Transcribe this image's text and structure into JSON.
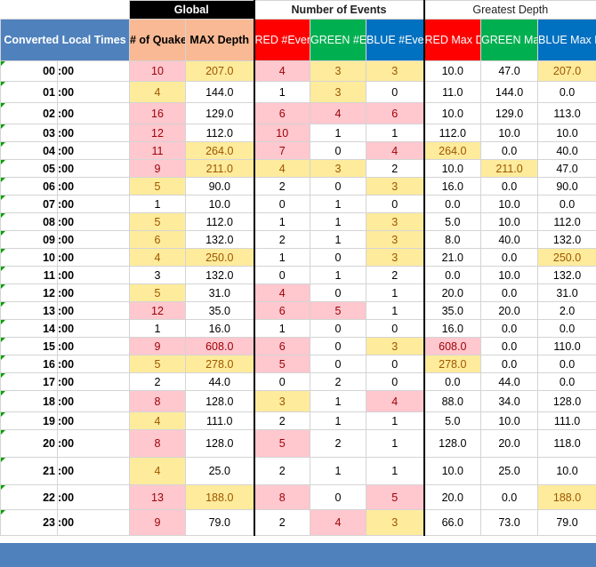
{
  "group_headers": {
    "global": "Global",
    "events": "Number of Events",
    "depth": "Greatest Depth"
  },
  "column_headers": {
    "converted": "Converted Local Times",
    "quakes": "# of Quakes",
    "max_depth": "MAX Depth",
    "red_events": "RED #Events",
    "green_events": "GREEN #Events",
    "blue_events": "BLUE #Events",
    "red_max": "RED Max Depth",
    "green_max": "GREEN Max Depth",
    "blue_max": "BLUE Max Depth"
  },
  "colors": {
    "header_blue": "#4f81bd",
    "header_orange": "#f8b994",
    "red": "#ff0000",
    "green": "#00b050",
    "blue": "#0070c0",
    "highlight_pink": "#ffc7ce",
    "highlight_yellow": "#ffeb9c"
  },
  "rows": [
    {
      "hour": "00",
      "min": ":00",
      "q": "10",
      "md": "207.0",
      "re": "4",
      "ge": "3",
      "be": "3",
      "rd": "10.0",
      "gd": "47.0",
      "bd": "207.0",
      "hl": {
        "q": "pink",
        "md": "yel",
        "re": "pink",
        "ge": "yel",
        "be": "yel",
        "bd": "yel"
      }
    },
    {
      "hour": "01",
      "min": ":00",
      "q": "4",
      "md": "144.0",
      "re": "1",
      "ge": "3",
      "be": "0",
      "rd": "11.0",
      "gd": "144.0",
      "bd": "0.0",
      "hl": {
        "q": "yel",
        "ge": "yel"
      }
    },
    {
      "hour": "02",
      "min": ":00",
      "q": "16",
      "md": "129.0",
      "re": "6",
      "ge": "4",
      "be": "6",
      "rd": "10.0",
      "gd": "129.0",
      "bd": "113.0",
      "hl": {
        "q": "pink",
        "re": "pink",
        "ge": "pink",
        "be": "pink"
      }
    },
    {
      "hour": "03",
      "min": ":00",
      "q": "12",
      "md": "112.0",
      "re": "10",
      "ge": "1",
      "be": "1",
      "rd": "112.0",
      "gd": "10.0",
      "bd": "10.0",
      "hl": {
        "q": "pink",
        "re": "pink"
      }
    },
    {
      "hour": "04",
      "min": ":00",
      "q": "11",
      "md": "264.0",
      "re": "7",
      "ge": "0",
      "be": "4",
      "rd": "264.0",
      "gd": "0.0",
      "bd": "40.0",
      "hl": {
        "q": "pink",
        "md": "yel",
        "re": "pink",
        "be": "pink",
        "rd": "yel"
      }
    },
    {
      "hour": "05",
      "min": ":00",
      "q": "9",
      "md": "211.0",
      "re": "4",
      "ge": "3",
      "be": "2",
      "rd": "10.0",
      "gd": "211.0",
      "bd": "47.0",
      "hl": {
        "q": "pink",
        "md": "yel",
        "re": "yel",
        "ge": "yel",
        "gd": "yel"
      }
    },
    {
      "hour": "06",
      "min": ":00",
      "q": "5",
      "md": "90.0",
      "re": "2",
      "ge": "0",
      "be": "3",
      "rd": "16.0",
      "gd": "0.0",
      "bd": "90.0",
      "hl": {
        "q": "yel",
        "be": "yel"
      }
    },
    {
      "hour": "07",
      "min": ":00",
      "q": "1",
      "md": "10.0",
      "re": "0",
      "ge": "1",
      "be": "0",
      "rd": "0.0",
      "gd": "10.0",
      "bd": "0.0",
      "hl": {}
    },
    {
      "hour": "08",
      "min": ":00",
      "q": "5",
      "md": "112.0",
      "re": "1",
      "ge": "1",
      "be": "3",
      "rd": "5.0",
      "gd": "10.0",
      "bd": "112.0",
      "hl": {
        "q": "yel",
        "be": "yel"
      }
    },
    {
      "hour": "09",
      "min": ":00",
      "q": "6",
      "md": "132.0",
      "re": "2",
      "ge": "1",
      "be": "3",
      "rd": "8.0",
      "gd": "40.0",
      "bd": "132.0",
      "hl": {
        "q": "yel",
        "be": "yel"
      }
    },
    {
      "hour": "10",
      "min": ":00",
      "q": "4",
      "md": "250.0",
      "re": "1",
      "ge": "0",
      "be": "3",
      "rd": "21.0",
      "gd": "0.0",
      "bd": "250.0",
      "hl": {
        "q": "yel",
        "md": "yel",
        "be": "yel",
        "bd": "yel"
      }
    },
    {
      "hour": "11",
      "min": ":00",
      "q": "3",
      "md": "132.0",
      "re": "0",
      "ge": "1",
      "be": "2",
      "rd": "0.0",
      "gd": "10.0",
      "bd": "132.0",
      "hl": {}
    },
    {
      "hour": "12",
      "min": ":00",
      "q": "5",
      "md": "31.0",
      "re": "4",
      "ge": "0",
      "be": "1",
      "rd": "20.0",
      "gd": "0.0",
      "bd": "31.0",
      "hl": {
        "q": "yel",
        "re": "pink"
      }
    },
    {
      "hour": "13",
      "min": ":00",
      "q": "12",
      "md": "35.0",
      "re": "6",
      "ge": "5",
      "be": "1",
      "rd": "35.0",
      "gd": "20.0",
      "bd": "2.0",
      "hl": {
        "q": "pink",
        "re": "pink",
        "ge": "pink"
      }
    },
    {
      "hour": "14",
      "min": ":00",
      "q": "1",
      "md": "16.0",
      "re": "1",
      "ge": "0",
      "be": "0",
      "rd": "16.0",
      "gd": "0.0",
      "bd": "0.0",
      "hl": {}
    },
    {
      "hour": "15",
      "min": ":00",
      "q": "9",
      "md": "608.0",
      "re": "6",
      "ge": "0",
      "be": "3",
      "rd": "608.0",
      "gd": "0.0",
      "bd": "110.0",
      "hl": {
        "q": "pink",
        "md": "pink",
        "re": "pink",
        "be": "yel",
        "rd": "pink"
      }
    },
    {
      "hour": "16",
      "min": ":00",
      "q": "5",
      "md": "278.0",
      "re": "5",
      "ge": "0",
      "be": "0",
      "rd": "278.0",
      "gd": "0.0",
      "bd": "0.0",
      "hl": {
        "q": "yel",
        "md": "yel",
        "re": "pink",
        "rd": "yel"
      }
    },
    {
      "hour": "17",
      "min": ":00",
      "q": "2",
      "md": "44.0",
      "re": "0",
      "ge": "2",
      "be": "0",
      "rd": "0.0",
      "gd": "44.0",
      "bd": "0.0",
      "hl": {}
    },
    {
      "hour": "18",
      "min": ":00",
      "q": "8",
      "md": "128.0",
      "re": "3",
      "ge": "1",
      "be": "4",
      "rd": "88.0",
      "gd": "34.0",
      "bd": "128.0",
      "hl": {
        "q": "pink",
        "re": "yel",
        "be": "pink"
      }
    },
    {
      "hour": "19",
      "min": ":00",
      "q": "4",
      "md": "111.0",
      "re": "2",
      "ge": "1",
      "be": "1",
      "rd": "5.0",
      "gd": "10.0",
      "bd": "111.0",
      "hl": {
        "q": "yel"
      }
    },
    {
      "hour": "20",
      "min": ":00",
      "q": "8",
      "md": "128.0",
      "re": "5",
      "ge": "2",
      "be": "1",
      "rd": "128.0",
      "gd": "20.0",
      "bd": "118.0",
      "hl": {
        "q": "pink",
        "re": "pink"
      }
    },
    {
      "hour": "21",
      "min": ":00",
      "q": "4",
      "md": "25.0",
      "re": "2",
      "ge": "1",
      "be": "1",
      "rd": "10.0",
      "gd": "25.0",
      "bd": "10.0",
      "hl": {
        "q": "yel"
      }
    },
    {
      "hour": "22",
      "min": ":00",
      "q": "13",
      "md": "188.0",
      "re": "8",
      "ge": "0",
      "be": "5",
      "rd": "20.0",
      "gd": "0.0",
      "bd": "188.0",
      "hl": {
        "q": "pink",
        "md": "yel",
        "re": "pink",
        "be": "pink",
        "bd": "yel"
      }
    },
    {
      "hour": "23",
      "min": ":00",
      "q": "9",
      "md": "79.0",
      "re": "2",
      "ge": "4",
      "be": "3",
      "rd": "66.0",
      "gd": "73.0",
      "bd": "79.0",
      "hl": {
        "q": "pink",
        "ge": "pink",
        "be": "yel"
      }
    }
  ]
}
